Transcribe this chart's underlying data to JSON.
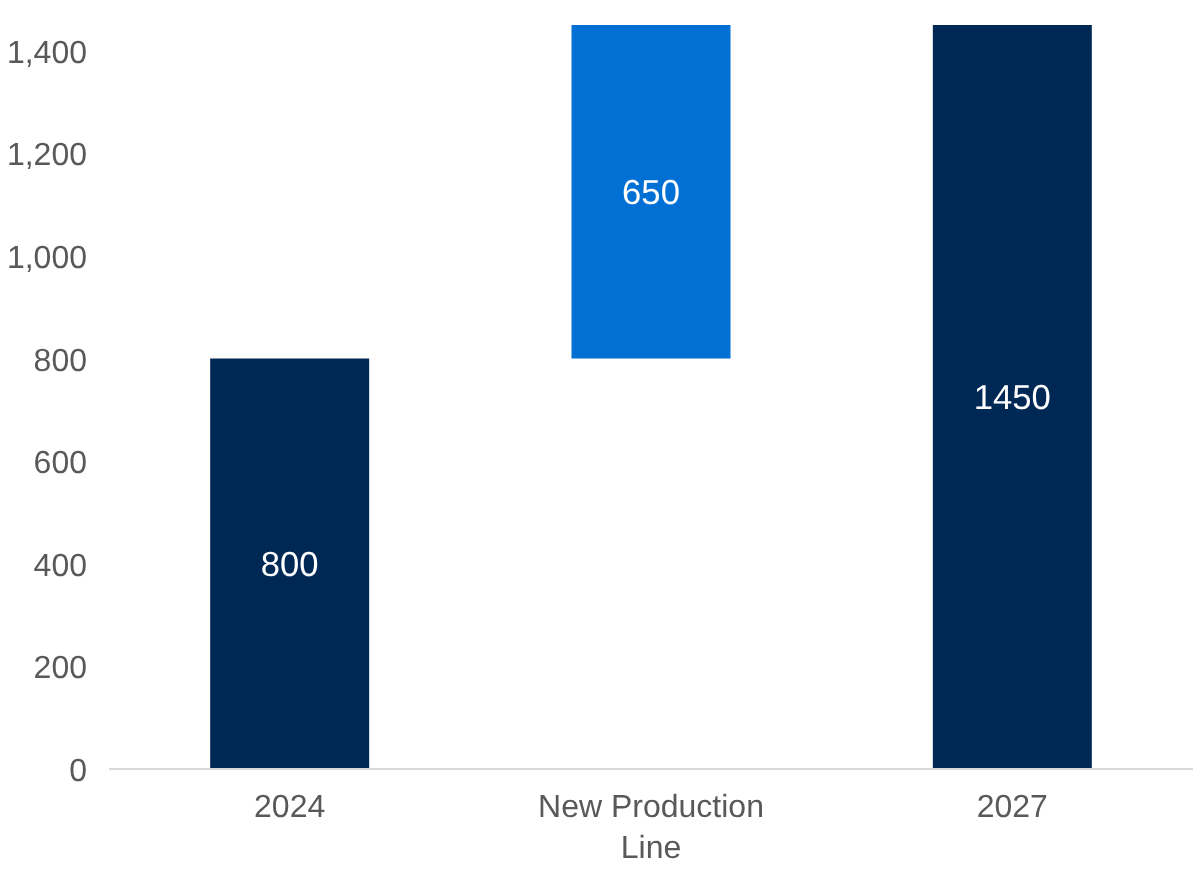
{
  "chart_data": {
    "type": "bar",
    "categories": [
      "2024",
      "New Production Line",
      "2027"
    ],
    "values": [
      800,
      650,
      1450
    ],
    "base": [
      0,
      800,
      0
    ],
    "colors": [
      "#002855",
      "#0070d4",
      "#002855"
    ],
    "ylim": [
      0,
      1450
    ],
    "yticks": [
      0,
      {
        "value": 200,
        "label": "200"
      },
      {
        "value": 400,
        "label": "400"
      },
      {
        "value": 600,
        "label": "600"
      },
      {
        "value": 800,
        "label": "800"
      },
      {
        "value": 1000,
        "label": "1,000"
      },
      {
        "value": 1200,
        "label": "1,200"
      },
      {
        "value": 1400,
        "label": "1,400"
      }
    ],
    "data_labels": true,
    "grid": false
  }
}
